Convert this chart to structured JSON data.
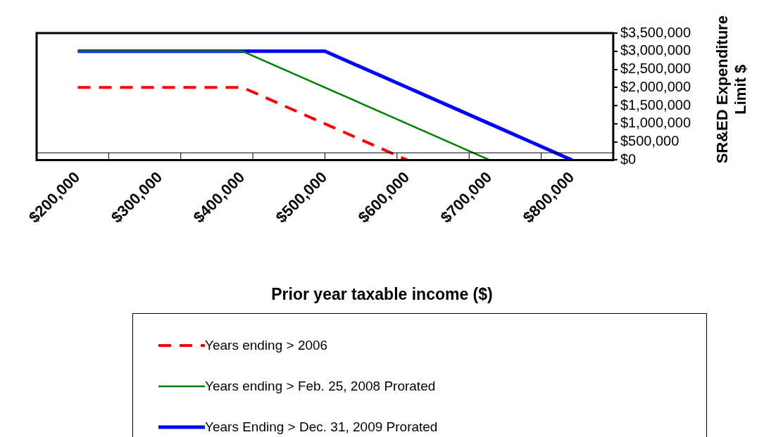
{
  "chart_data": {
    "type": "line",
    "xlabel": "Prior year taxable income ($)",
    "ylabel": "SR&ED Expenditure Limit $",
    "categories": [
      "$200,000",
      "$300,000",
      "$400,000",
      "$500,000",
      "$600,000",
      "$700,000",
      "$800,000"
    ],
    "series": [
      {
        "name": "Years ending > 2006",
        "color": "#ff0000",
        "line_style": "dashed",
        "values": [
          2000000,
          2000000,
          2000000,
          1000000,
          0,
          null,
          null
        ]
      },
      {
        "name": "Years ending > Feb. 25, 2008 Prorated",
        "color": "#008000",
        "values": [
          3000000,
          3000000,
          3000000,
          2000000,
          1000000,
          0,
          null
        ]
      },
      {
        "name": "Years Ending > Dec. 31, 2009 Prorated",
        "color": "#0000ff",
        "values": [
          3000000,
          3000000,
          3000000,
          3000000,
          2000000,
          1000000,
          0
        ]
      }
    ],
    "ylim": [
      0,
      3500000
    ],
    "yticks": [
      {
        "value": 0,
        "label": "$0"
      },
      {
        "value": 500000,
        "label": "$500,000"
      },
      {
        "value": 1000000,
        "label": "$1,000,000"
      },
      {
        "value": 1500000,
        "label": "$1,500,000"
      },
      {
        "value": 2000000,
        "label": "$2,000,000"
      },
      {
        "value": 2500000,
        "label": "$2,500,000"
      },
      {
        "value": 3000000,
        "label": "$3,000,000"
      },
      {
        "value": 3500000,
        "label": "$3,500,000"
      }
    ],
    "ref_lines": [
      {
        "axis": "y",
        "value": 200000,
        "color": "#000000"
      }
    ],
    "grid": false,
    "legend": "bottom",
    "marker": "none",
    "line_style": "solid"
  }
}
